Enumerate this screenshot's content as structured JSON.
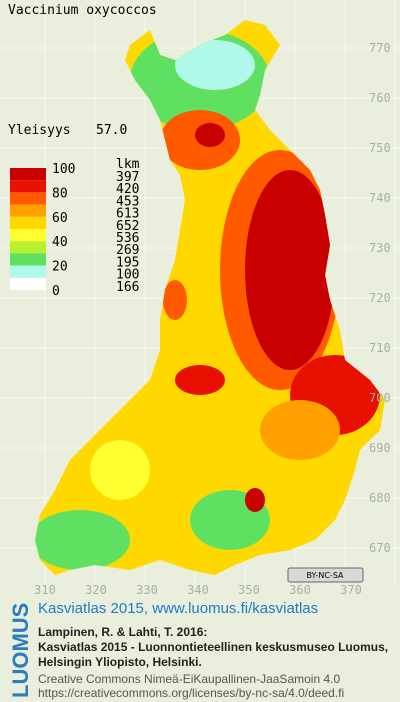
{
  "map": {
    "title": "Vaccinium oxycoccos",
    "frequency": {
      "label": "Yleisyys",
      "value": "57.0"
    },
    "legend": {
      "class_labels": [
        100,
        80,
        60,
        40,
        20,
        0
      ],
      "count_header": "lkm",
      "counts": [
        397,
        420,
        453,
        613,
        652,
        536,
        269,
        195,
        100,
        166
      ],
      "colors": [
        "#c80000",
        "#e81000",
        "#ff5a00",
        "#ffa000",
        "#ffd800",
        "#ffff30",
        "#b8f030",
        "#60e060",
        "#b0f8e8",
        "#ffffff"
      ]
    },
    "northing_labels": [
      770,
      760,
      750,
      740,
      730,
      720,
      710,
      700,
      690,
      680,
      670
    ],
    "easting_labels": [
      310,
      320,
      330,
      340,
      350,
      360,
      370
    ],
    "license_badge": "BY-NC-SA"
  },
  "footer": {
    "logo": "LUOMUS",
    "headline": "Kasviatlas 2015, www.luomus.fi/kasviatlas",
    "citation": [
      "Lampinen, R. & Lahti, T. 2016:",
      "Kasviatlas 2015 - Luonnontieteellinen keskusmuseo Luomus,",
      "Helsingin Yliopisto, Helsinki."
    ],
    "license": [
      "Creative Commons Nimeä-EiKaupallinen-JaaSamoin 4.0",
      "https://creativecommons.org/licenses/by-nc-sa/4.0/deed.fi"
    ]
  }
}
